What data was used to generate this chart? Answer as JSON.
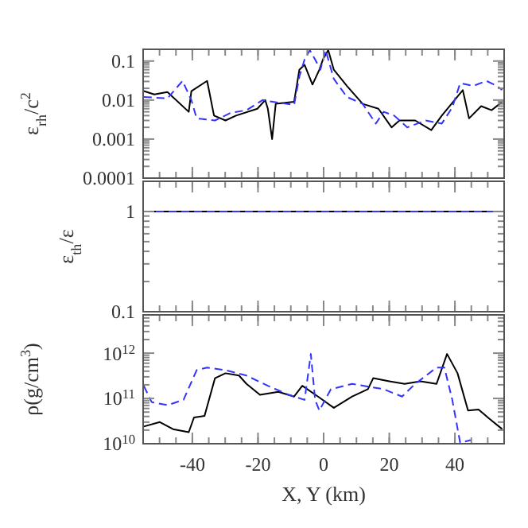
{
  "chart_data": [
    {
      "type": "line",
      "ylabel": "ε$_{rh}$/c$^{2}$",
      "log": "y",
      "xlim": [
        -55,
        55
      ],
      "xticks": [
        -40,
        -20,
        0,
        20,
        40
      ],
      "ylim": [
        0.0001,
        0.2
      ],
      "yticks": [
        0.0001,
        0.001,
        0.01,
        0.1
      ],
      "tick_labels": "y",
      "series": [
        {
          "color": "#000000",
          "line_style": "solid",
          "x": [
            -54.8,
            -51.6,
            -47.6,
            -41.1,
            -40.3,
            -35.5,
            -33.4,
            -29.9,
            -26.7,
            -20.2,
            -17.8,
            -17,
            -15.7,
            -14.6,
            -9,
            -7.4,
            -5.8,
            -3.4,
            -1.3,
            -0.2,
            1.4,
            3.1,
            7.1,
            11.9,
            16.7,
            20.7,
            23.1,
            27.9,
            32.8,
            36,
            42.4,
            44.3,
            48,
            51.2,
            54.4
          ],
          "values": [
            0.017,
            0.014,
            0.016,
            0.005,
            0.017,
            0.031,
            0.004,
            0.003,
            0.004,
            0.006,
            0.01,
            0.006,
            0.001,
            0.008,
            0.009,
            0.06,
            0.08,
            0.025,
            0.06,
            0.11,
            0.19,
            0.06,
            0.023,
            0.008,
            0.006,
            0.002,
            0.003,
            0.003,
            0.0017,
            0.004,
            0.018,
            0.0034,
            0.007,
            0.0055,
            0.009
          ]
        },
        {
          "color": "#3333ff",
          "line_style": "dashed",
          "x": [
            -54.8,
            -47.6,
            -43,
            -40.3,
            -38.7,
            -33.1,
            -28.3,
            -23.5,
            -18.6,
            -15.4,
            -9,
            -7.4,
            -5.8,
            -4.2,
            -2.6,
            -1,
            0.6,
            3.1,
            7.1,
            11.9,
            15.9,
            18.3,
            21.5,
            25.5,
            31.1,
            36,
            39.2,
            41.6,
            45.6,
            49.6,
            52.8,
            54.4
          ],
          "values": [
            0.012,
            0.011,
            0.031,
            0.01,
            0.0034,
            0.003,
            0.0047,
            0.0055,
            0.01,
            0.009,
            0.0075,
            0.04,
            0.11,
            0.19,
            0.11,
            0.06,
            0.19,
            0.035,
            0.012,
            0.008,
            0.0025,
            0.005,
            0.004,
            0.002,
            0.003,
            0.0025,
            0.0065,
            0.027,
            0.023,
            0.031,
            0.023,
            0.018
          ]
        }
      ]
    },
    {
      "type": "line",
      "ylabel": "ε$_{th}$/ε",
      "log": "y",
      "xlim": [
        -55,
        55
      ],
      "xticks": [
        -40,
        -20,
        0,
        20,
        40
      ],
      "ylim": [
        0.1,
        2
      ],
      "yticks": [
        0.1,
        1
      ],
      "tick_labels": "y",
      "series": [
        {
          "color": "#000000",
          "line_style": "solid",
          "x": [
            -55,
            55
          ],
          "values": [
            1,
            1
          ]
        },
        {
          "color": "#3333ff",
          "line_style": "dashed",
          "x": [
            -55,
            55
          ],
          "values": [
            1,
            1
          ]
        }
      ]
    },
    {
      "type": "line",
      "ylabel": "ρ(g/cm$^{3}$)",
      "xlabel": "X, Y (km)",
      "log": "y",
      "xlim": [
        -55,
        55
      ],
      "xticks": [
        -40,
        -20,
        0,
        20,
        40
      ],
      "ylim": [
        10000000000.0,
        7000000000000.0
      ],
      "yticks": [
        {
          "value": 10000000000.0,
          "label": "10$^{10}$"
        },
        {
          "value": 100000000000.0,
          "label": "10$^{11}$"
        },
        {
          "value": 1000000000000.0,
          "label": "10$^{12}$"
        }
      ],
      "series": [
        {
          "color": "#000000",
          "line_style": "solid",
          "x": [
            -54.8,
            -49.9,
            -45.9,
            -41.1,
            -39.5,
            -36.3,
            -33.1,
            -29.9,
            -25.8,
            -23.5,
            -19.4,
            -13.8,
            -9,
            -6.5,
            -1.7,
            3.1,
            8.7,
            13.5,
            15.1,
            20,
            24.7,
            29.5,
            34.4,
            37.6,
            40.8,
            44,
            47.2,
            50.4,
            54.4
          ],
          "values": [
            24000000000.0,
            30000000000.0,
            21000000000.0,
            18000000000.0,
            38000000000.0,
            41000000000.0,
            280000000000.0,
            360000000000.0,
            320000000000.0,
            210000000000.0,
            120000000000.0,
            140000000000.0,
            110000000000.0,
            190000000000.0,
            110000000000.0,
            62000000000.0,
            110000000000.0,
            160000000000.0,
            280000000000.0,
            240000000000.0,
            210000000000.0,
            240000000000.0,
            210000000000.0,
            960000000000.0,
            360000000000.0,
            54000000000.0,
            57000000000.0,
            36000000000.0,
            21000000000.0
          ]
        },
        {
          "color": "#3333ff",
          "line_style": "dashed",
          "x": [
            -54.8,
            -52.4,
            -47.6,
            -42.7,
            -38.7,
            -35.5,
            -29.9,
            -23.5,
            -17,
            -10.6,
            -5.8,
            -3.9,
            -2.6,
            -1.3,
            2.2,
            8.7,
            18.3,
            23.9,
            27.9,
            34.4,
            36.8,
            39.2,
            41.6,
            44.8
          ],
          "values": [
            190000000000.0,
            83000000000.0,
            71000000000.0,
            93000000000.0,
            420000000000.0,
            480000000000.0,
            420000000000.0,
            320000000000.0,
            190000000000.0,
            120000000000.0,
            93000000000.0,
            960000000000.0,
            93000000000.0,
            54000000000.0,
            160000000000.0,
            210000000000.0,
            160000000000.0,
            110000000000.0,
            210000000000.0,
            480000000000.0,
            480000000000.0,
            93000000000.0,
            10500000000.0,
            12000000000.0
          ]
        }
      ]
    }
  ]
}
